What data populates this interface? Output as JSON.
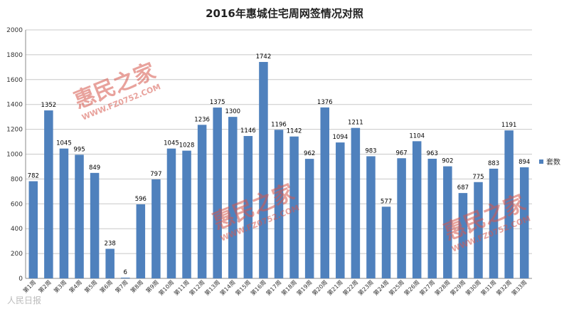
{
  "chart_data": {
    "type": "bar",
    "title": "2016年惠城住宅周网签情况对照",
    "xlabel": "",
    "ylabel": "",
    "ylim": [
      0,
      2000
    ],
    "yticks": [
      0,
      200,
      400,
      600,
      800,
      1000,
      1200,
      1400,
      1600,
      1800,
      2000
    ],
    "grid": true,
    "legend_position": "right",
    "categories": [
      "第1周",
      "第2周",
      "第3周",
      "第4周",
      "第5周",
      "第6周",
      "第7周",
      "第8周",
      "第9周",
      "第10周",
      "第11周",
      "第12周",
      "第13周",
      "第14周",
      "第15周",
      "第16周",
      "第17周",
      "第18周",
      "第19周",
      "第20周",
      "第21周",
      "第22周",
      "第23周",
      "第24周",
      "第25周",
      "第26周",
      "第27周",
      "第28周",
      "第29周",
      "第30周",
      "第31周",
      "第32周",
      "第33周"
    ],
    "series": [
      {
        "name": "套数",
        "values": [
          782,
          1352,
          1045,
          995,
          849,
          238,
          6,
          596,
          797,
          1045,
          1028,
          1236,
          1375,
          1300,
          1146,
          1742,
          1196,
          1142,
          962,
          1376,
          1094,
          1211,
          983,
          577,
          967,
          1104,
          963,
          902,
          687,
          775,
          883,
          1191,
          894
        ]
      }
    ]
  },
  "colors": {
    "bar": "#4f81bd",
    "grid": "#c8c8c8",
    "watermark": "#d7574d"
  },
  "watermark": {
    "brand": "惠民之家",
    "url": "WWW.FZ0752.COM"
  },
  "corner_mark": "人民日报"
}
